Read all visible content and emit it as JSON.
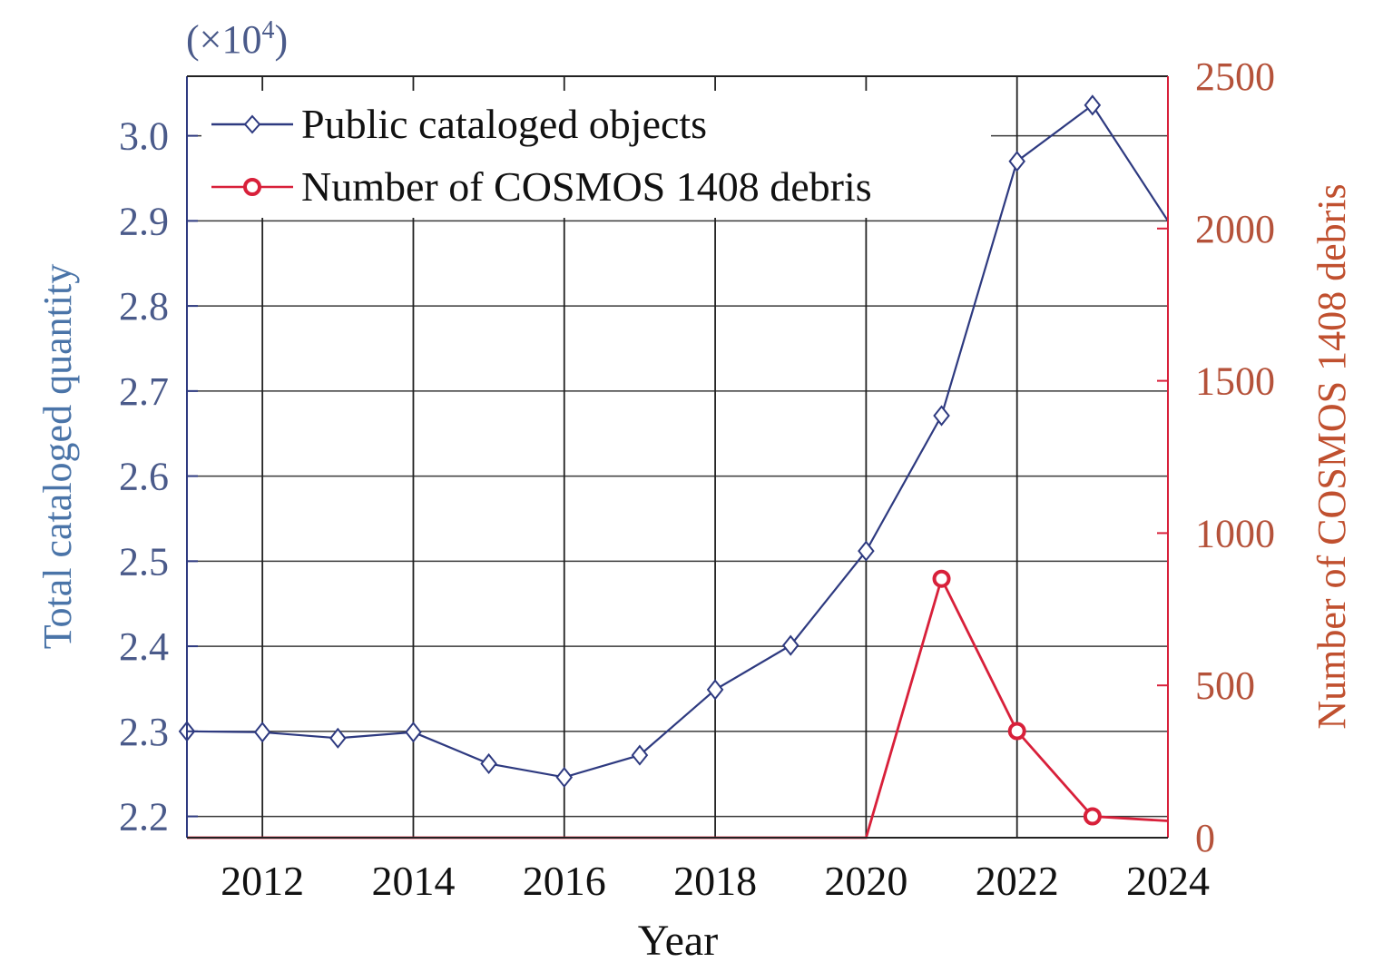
{
  "chart_data": {
    "type": "line",
    "x": [
      2011,
      2012,
      2013,
      2014,
      2015,
      2016,
      2017,
      2018,
      2019,
      2020,
      2021,
      2022,
      2023,
      2024
    ],
    "xlabel": "Year",
    "xlim": [
      2011,
      2024
    ],
    "xticks": [
      "2012",
      "2014",
      "2016",
      "2018",
      "2020",
      "2022",
      "2024"
    ],
    "left_axis": {
      "label": "Total cataloged quantity",
      "multiplier": "(×10",
      "multiplier_exp": "4",
      "multiplier_close": ")",
      "ylim": [
        2.175,
        3.07
      ],
      "ticks": [
        "2.2",
        "2.3",
        "2.4",
        "2.5",
        "2.6",
        "2.7",
        "2.8",
        "2.9",
        "3.0"
      ],
      "color": "#2e3a80"
    },
    "right_axis": {
      "label": "Number of COSMOS 1408 debris",
      "ylim": [
        0,
        2500
      ],
      "ticks": [
        "0",
        "500",
        "1000",
        "1500",
        "2000",
        "2500"
      ],
      "color": "#d8203a"
    },
    "series": [
      {
        "name": "Public cataloged objects",
        "axis": "left",
        "marker": "diamond",
        "color": "#2e3a80",
        "values": [
          2.3,
          2.299,
          2.292,
          2.299,
          2.262,
          2.246,
          2.272,
          2.349,
          2.401,
          2.512,
          2.671,
          2.97,
          3.036,
          2.9
        ]
      },
      {
        "name": "Number of COSMOS 1408 debris",
        "axis": "right",
        "marker": "circle",
        "color": "#d8203a",
        "values": [
          0,
          0,
          0,
          0,
          0,
          0,
          0,
          0,
          0,
          0,
          850,
          350,
          70,
          55
        ]
      }
    ],
    "grid": true,
    "legend_position": "top-left"
  }
}
